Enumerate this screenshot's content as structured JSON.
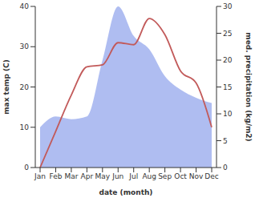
{
  "chart_data": {
    "type": "line",
    "x_label": "date (month)",
    "y_label": "max temp (C)",
    "y2_label": "med. precipitation (kg/m2)",
    "categories": [
      "Jan",
      "Feb",
      "Mar",
      "Apr",
      "May",
      "Jun",
      "Jul",
      "Aug",
      "Sep",
      "Oct",
      "Nov",
      "Dec"
    ],
    "ylim": [
      0,
      40
    ],
    "yticks": [
      0,
      10,
      20,
      30,
      40
    ],
    "y2lim": [
      0,
      30
    ],
    "y2ticks": [
      0,
      5,
      10,
      15,
      20,
      25,
      30
    ],
    "grid": false,
    "series": [
      {
        "name": "med. precipitation",
        "type": "area",
        "axis": "y2",
        "color": "#a6b6f0",
        "values": [
          7.5,
          9.5,
          9,
          9.5,
          20,
          30,
          24.5,
          22,
          17,
          14.5,
          13,
          12
        ]
      },
      {
        "name": "max temp",
        "type": "line",
        "color": "#c25a5a",
        "values": [
          0,
          9,
          18,
          25,
          25.5,
          31,
          30.5,
          37,
          33,
          24,
          21,
          10
        ]
      }
    ]
  }
}
